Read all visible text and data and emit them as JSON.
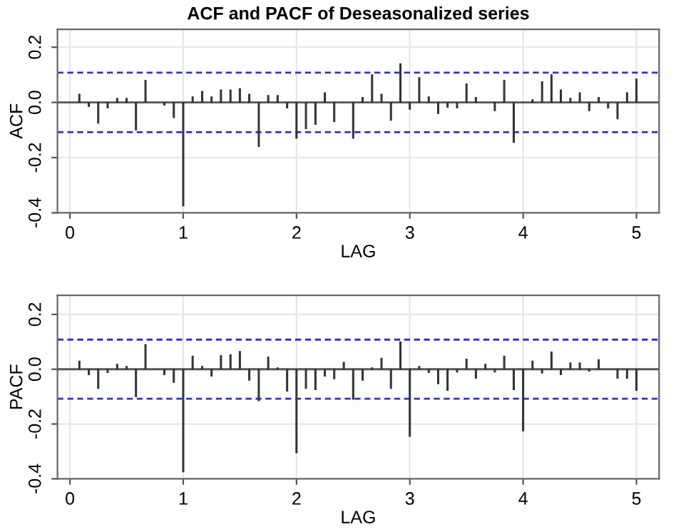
{
  "chart_data": [
    {
      "type": "bar",
      "title": "ACF and PACF of Deseasonalized series",
      "xlabel": "LAG",
      "ylabel": "ACF",
      "x": [
        0.083,
        0.167,
        0.25,
        0.333,
        0.417,
        0.5,
        0.583,
        0.667,
        0.75,
        0.833,
        0.917,
        1,
        1.083,
        1.167,
        1.25,
        1.333,
        1.417,
        1.5,
        1.583,
        1.667,
        1.75,
        1.833,
        1.917,
        2,
        2.083,
        2.167,
        2.25,
        2.333,
        2.417,
        2.5,
        2.583,
        2.667,
        2.75,
        2.833,
        2.917,
        3,
        3.083,
        3.167,
        3.25,
        3.333,
        3.417,
        3.5,
        3.583,
        3.667,
        3.75,
        3.833,
        3.917,
        4,
        4.083,
        4.167,
        4.25,
        4.333,
        4.417,
        4.5,
        4.583,
        4.667,
        4.75,
        4.833,
        4.917,
        5
      ],
      "series": [
        {
          "color": "#333333",
          "values": [
            0.03,
            -0.015,
            -0.075,
            -0.02,
            0.015,
            0.015,
            -0.1,
            0.08,
            0.0,
            -0.01,
            -0.055,
            -0.375,
            0.02,
            0.04,
            0.02,
            0.045,
            0.045,
            0.05,
            0.03,
            -0.16,
            0.025,
            0.025,
            -0.02,
            -0.13,
            -0.095,
            -0.08,
            0.035,
            -0.07,
            0.0,
            -0.13,
            0.018,
            0.1,
            0.03,
            -0.065,
            0.14,
            -0.025,
            0.09,
            0.02,
            -0.04,
            -0.018,
            -0.02,
            0.067,
            0.018,
            0.0,
            -0.03,
            0.08,
            -0.145,
            0.0,
            0.01,
            0.075,
            0.1,
            0.045,
            0.015,
            0.035,
            -0.03,
            0.018,
            -0.02,
            -0.06,
            0.035,
            0.085
          ]
        }
      ],
      "xlim": [
        -0.11,
        5.2
      ],
      "xticks": [
        0,
        1,
        2,
        3,
        4,
        5
      ],
      "ylim": [
        -0.4,
        0.265
      ],
      "yticks": [
        -0.4,
        -0.2,
        {
          "value": 0,
          "label": "0.0"
        },
        0.2
      ],
      "grid": true,
      "ref_lines": [
        {
          "axis": "y",
          "value": 0,
          "color": "#555555",
          "line_style": "solid"
        },
        {
          "axis": "y",
          "value": 0.108,
          "color": "#3333cc",
          "line_style": "dashed"
        },
        {
          "axis": "y",
          "value": -0.108,
          "color": "#3333cc",
          "line_style": "dashed"
        }
      ]
    },
    {
      "type": "bar",
      "xlabel": "LAG",
      "ylabel": "PACF",
      "x": [
        0.083,
        0.167,
        0.25,
        0.333,
        0.417,
        0.5,
        0.583,
        0.667,
        0.75,
        0.833,
        0.917,
        1,
        1.083,
        1.167,
        1.25,
        1.333,
        1.417,
        1.5,
        1.583,
        1.667,
        1.75,
        1.833,
        1.917,
        2,
        2.083,
        2.167,
        2.25,
        2.333,
        2.417,
        2.5,
        2.583,
        2.667,
        2.75,
        2.833,
        2.917,
        3,
        3.083,
        3.167,
        3.25,
        3.333,
        3.417,
        3.5,
        3.583,
        3.667,
        3.75,
        3.833,
        3.917,
        4,
        4.083,
        4.167,
        4.25,
        4.333,
        4.417,
        4.5,
        4.583,
        4.667,
        4.75,
        4.833,
        4.917,
        5
      ],
      "series": [
        {
          "color": "#333333",
          "values": [
            0.03,
            -0.02,
            -0.07,
            -0.012,
            0.018,
            0.01,
            -0.1,
            0.09,
            0.0,
            -0.02,
            -0.048,
            -0.375,
            0.048,
            0.01,
            -0.025,
            0.05,
            0.053,
            0.065,
            -0.04,
            -0.115,
            0.045,
            0.005,
            -0.08,
            -0.305,
            -0.07,
            -0.075,
            -0.025,
            -0.035,
            0.025,
            -0.11,
            -0.04,
            0.005,
            0.04,
            -0.07,
            0.1,
            -0.245,
            0.01,
            -0.012,
            -0.053,
            -0.077,
            -0.01,
            0.037,
            -0.033,
            0.018,
            -0.01,
            0.048,
            -0.075,
            -0.225,
            0.03,
            -0.014,
            0.063,
            -0.02,
            0.023,
            0.023,
            -0.007,
            0.035,
            0.0,
            -0.033,
            -0.033,
            -0.077
          ]
        }
      ],
      "xlim": [
        -0.11,
        5.2
      ],
      "xticks": [
        0,
        1,
        2,
        3,
        4,
        5
      ],
      "ylim": [
        -0.4,
        0.27
      ],
      "yticks": [
        -0.4,
        -0.2,
        {
          "value": 0,
          "label": "0.0"
        },
        0.2
      ],
      "grid": true,
      "ref_lines": [
        {
          "axis": "y",
          "value": 0,
          "color": "#555555",
          "line_style": "solid"
        },
        {
          "axis": "y",
          "value": 0.108,
          "color": "#3333cc",
          "line_style": "dashed"
        },
        {
          "axis": "y",
          "value": -0.108,
          "color": "#3333cc",
          "line_style": "dashed"
        }
      ]
    }
  ]
}
